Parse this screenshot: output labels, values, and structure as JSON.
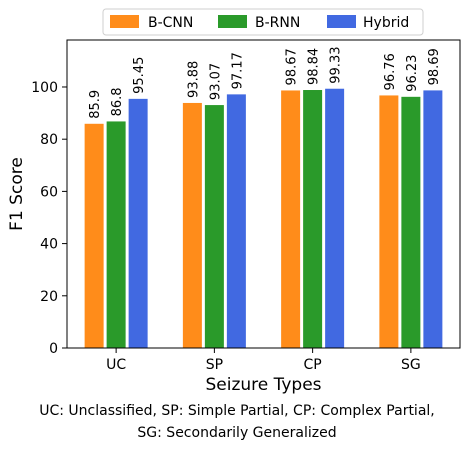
{
  "chart_data": {
    "type": "bar",
    "categories": [
      "UC",
      "SP",
      "CP",
      "SG"
    ],
    "series": [
      {
        "name": "B-CNN",
        "values": [
          85.9,
          93.88,
          98.67,
          96.76
        ],
        "labels": [
          "85.9",
          "93.88",
          "98.67",
          "96.76"
        ],
        "color": "#ff8c1a"
      },
      {
        "name": "B-RNN",
        "values": [
          86.8,
          93.07,
          98.84,
          96.23
        ],
        "labels": [
          "86.8",
          "93.07",
          "98.84",
          "96.23"
        ],
        "color": "#2a9a2a"
      },
      {
        "name": "Hybrid",
        "values": [
          95.45,
          97.17,
          99.33,
          98.69
        ],
        "labels": [
          "95.45",
          "97.17",
          "99.33",
          "98.69"
        ],
        "color": "#4169e1"
      }
    ],
    "xlabel": "Seizure Types",
    "ylabel": "F1 Score",
    "ylim": [
      0,
      118
    ],
    "yticks": [
      0,
      20,
      40,
      60,
      80,
      100
    ],
    "grid": false,
    "legend": "top"
  },
  "caption": {
    "line1": "UC: Unclassified, SP: Simple Partial, CP: Complex Partial,",
    "line2": "SG: Secondarily Generalized"
  }
}
